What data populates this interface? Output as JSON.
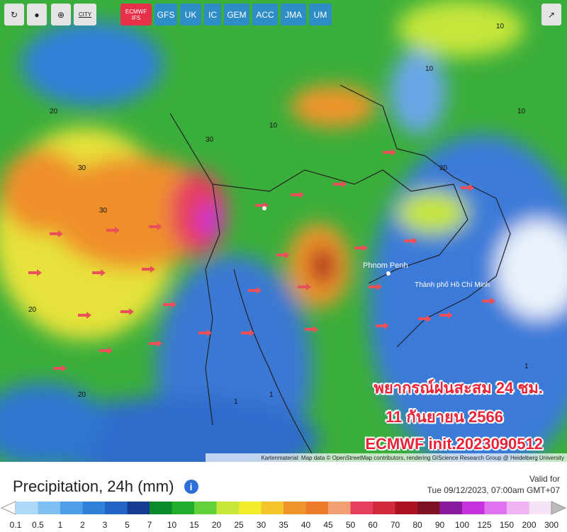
{
  "toolbar": {
    "city": "CITY",
    "models": [
      {
        "label": "ECMWF IFS",
        "active": true
      },
      {
        "label": "GFS",
        "active": false
      },
      {
        "label": "UK",
        "active": false
      },
      {
        "label": "IC",
        "active": false
      },
      {
        "label": "GEM",
        "active": false
      },
      {
        "label": "ACC",
        "active": false
      },
      {
        "label": "JMA",
        "active": false
      },
      {
        "label": "UM",
        "active": false
      }
    ]
  },
  "map": {
    "places": [
      "Phnom Penh",
      "Thành phố Hồ Chí Minh"
    ],
    "overlay": [
      "พยากรณ์ฝนสะสม 24 ชม.",
      "11 กันยายน 2566",
      "ECMWF  init.2023090512"
    ],
    "contours": [
      "20",
      "30",
      "30",
      "20",
      "10",
      "10",
      "20",
      "10",
      "1",
      "1",
      "1",
      "20",
      "30",
      "10"
    ],
    "attribution": "Kartenmaterial: Map data © OpenStreetMap contributors, rendering GIScience Research Group @ Heidelberg University"
  },
  "footer": {
    "title": "Precipitation, 24h (mm)",
    "valid_label": "Valid for",
    "valid_time": "Tue 09/12/2023, 07:00am GMT+07"
  },
  "legend": {
    "ticks": [
      0.1,
      0.5,
      1,
      2,
      3,
      5,
      7,
      10,
      15,
      20,
      25,
      30,
      35,
      40,
      45,
      50,
      60,
      70,
      80,
      90,
      100,
      125,
      150,
      200,
      300
    ],
    "colors": [
      "#aed8f7",
      "#80bff2",
      "#4f9fe8",
      "#2f80d9",
      "#2263c4",
      "#153c90",
      "#0b8a2b",
      "#20ad2b",
      "#63d13b",
      "#c6e63a",
      "#f3ec2b",
      "#f4c42b",
      "#ef952b",
      "#ee7a2c",
      "#f2a073",
      "#e63e5e",
      "#d12a3b",
      "#ad1222",
      "#7e1222",
      "#8a1ba0",
      "#c632de",
      "#de72ef",
      "#efb3f4",
      "#f5e2f5"
    ]
  }
}
